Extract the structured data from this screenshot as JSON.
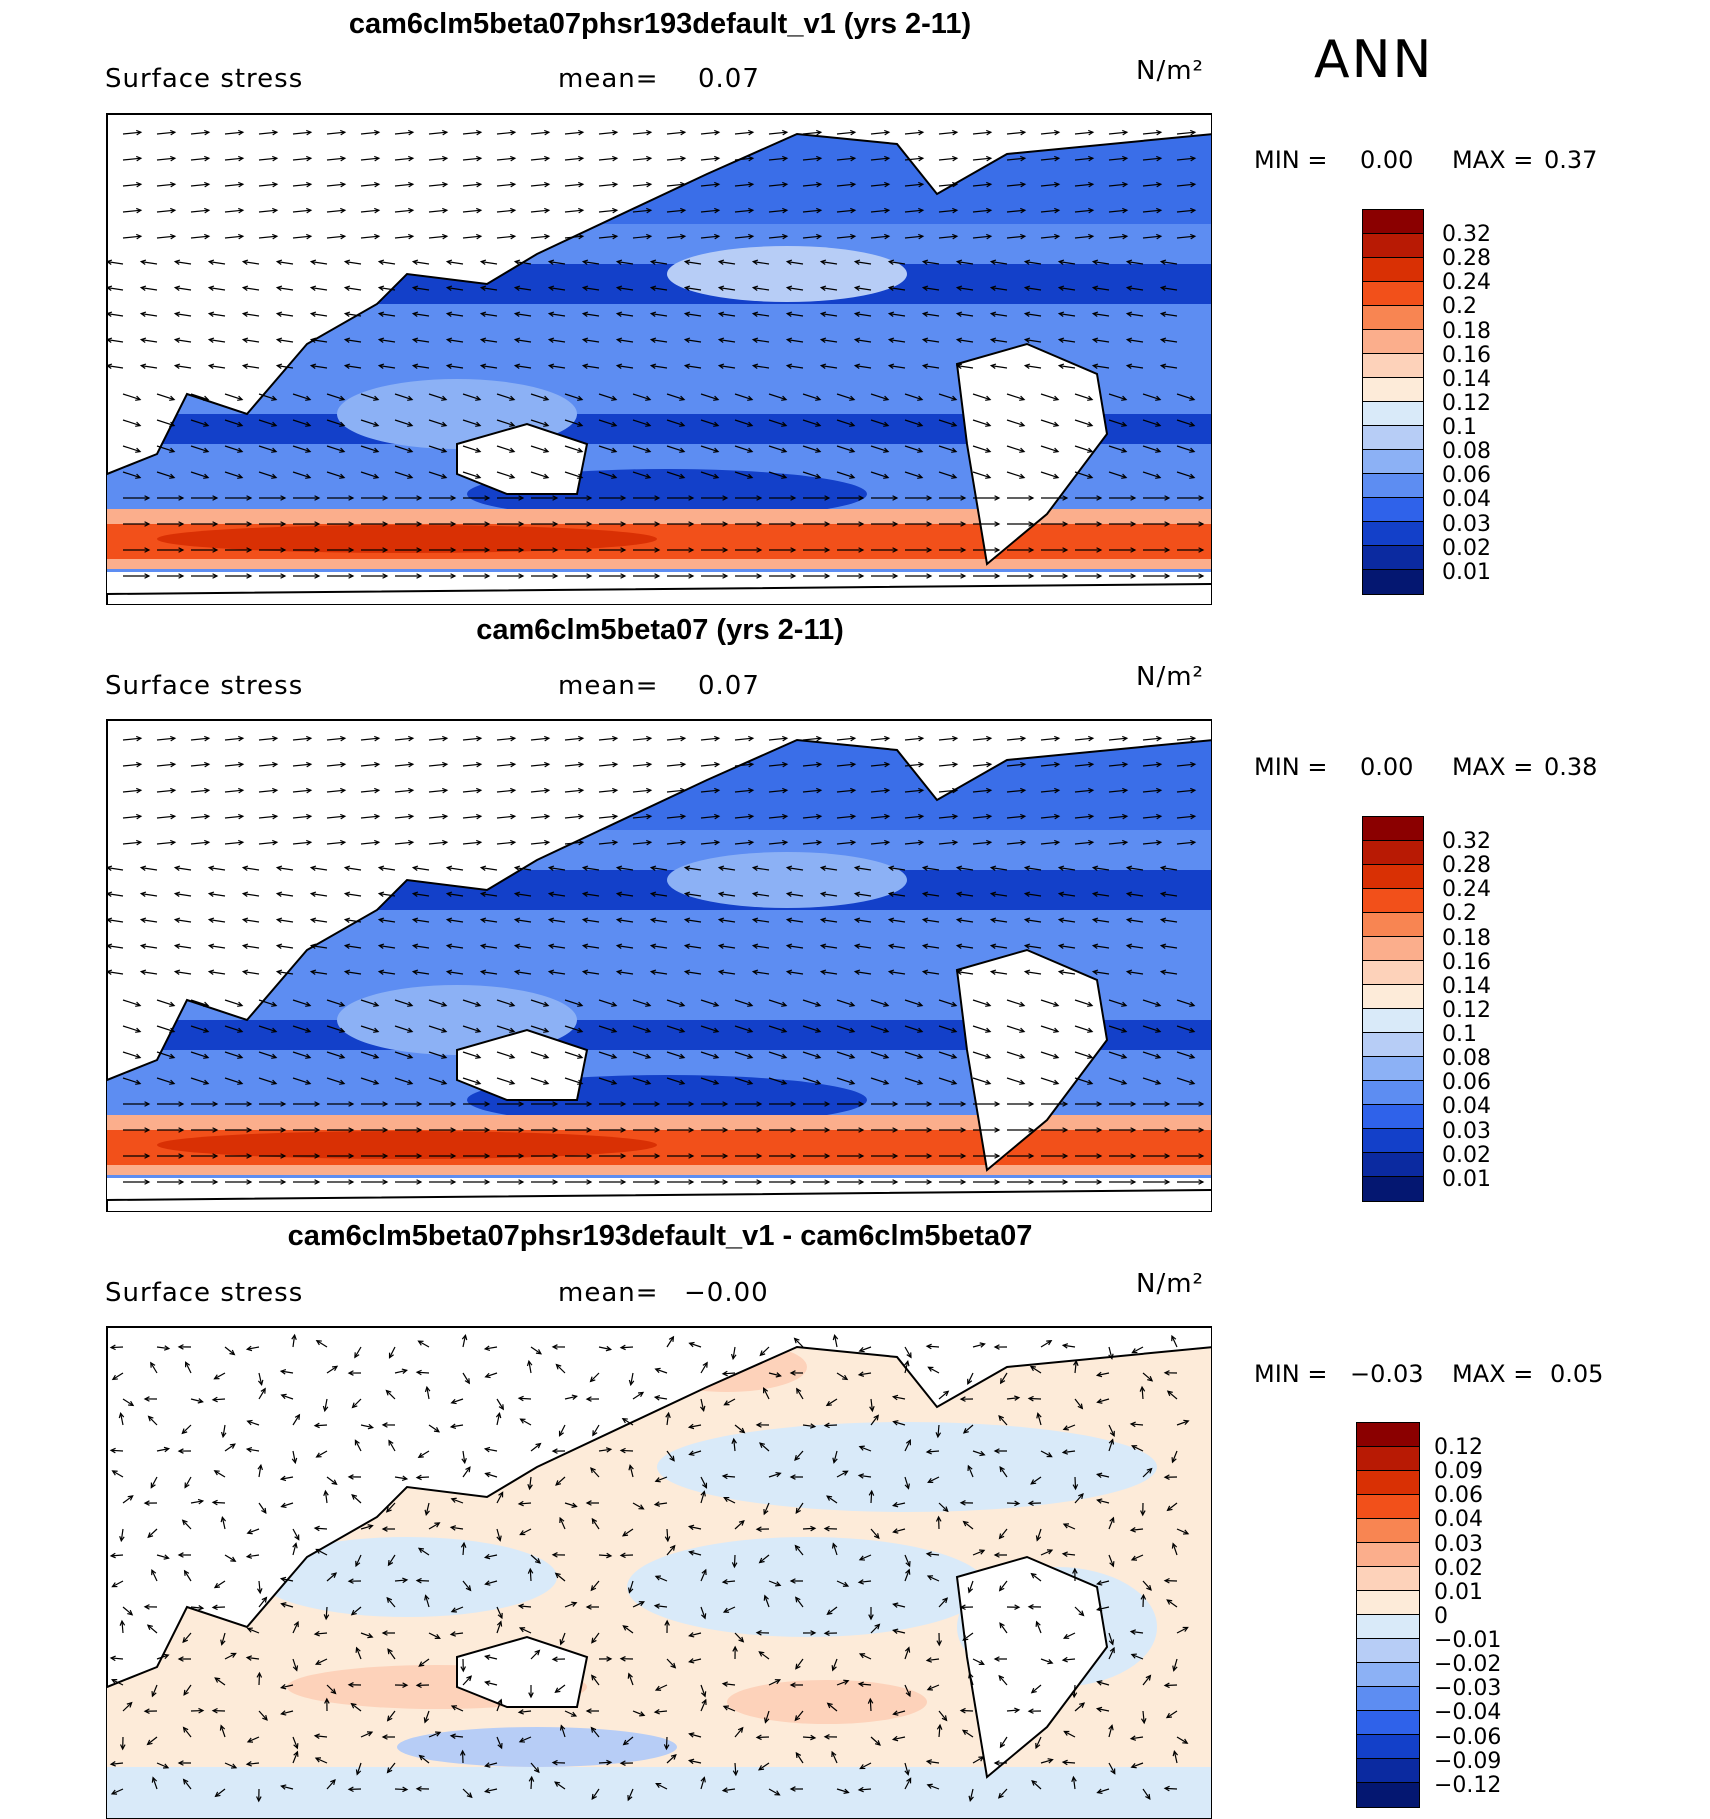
{
  "season": "ANN",
  "panels": [
    {
      "title": "cam6clm5beta07phsr193default_v1 (yrs 2-11)",
      "variable": "Surface stress",
      "mean_label": "mean=",
      "mean_value": "0.07",
      "units": "N/m²",
      "min_label": "MIN =",
      "min_value": "0.00",
      "max_label": "MAX =",
      "max_value": "0.37",
      "colorbar_labels": [
        "0.32",
        "0.28",
        "0.24",
        "0.2",
        "0.18",
        "0.16",
        "0.14",
        "0.12",
        "0.1",
        "0.08",
        "0.06",
        "0.04",
        "0.03",
        "0.02",
        "0.01"
      ],
      "colorbar_colors": [
        "#8b0000",
        "#b81a04",
        "#d93004",
        "#f2501a",
        "#f88552",
        "#fbae8c",
        "#fdd2ba",
        "#fdebd9",
        "#d9eaf9",
        "#b7cdf6",
        "#8cb1f5",
        "#5d8df2",
        "#2f62ea",
        "#1340c9",
        "#0b2aa0",
        "#041771"
      ]
    },
    {
      "title": "cam6clm5beta07 (yrs 2-11)",
      "variable": "Surface stress",
      "mean_label": "mean=",
      "mean_value": "0.07",
      "units": "N/m²",
      "min_label": "MIN =",
      "min_value": "0.00",
      "max_label": "MAX =",
      "max_value": "0.38",
      "colorbar_labels": [
        "0.32",
        "0.28",
        "0.24",
        "0.2",
        "0.18",
        "0.16",
        "0.14",
        "0.12",
        "0.1",
        "0.08",
        "0.06",
        "0.04",
        "0.03",
        "0.02",
        "0.01"
      ],
      "colorbar_colors": [
        "#8b0000",
        "#b81a04",
        "#d93004",
        "#f2501a",
        "#f88552",
        "#fbae8c",
        "#fdd2ba",
        "#fdebd9",
        "#d9eaf9",
        "#b7cdf6",
        "#8cb1f5",
        "#5d8df2",
        "#2f62ea",
        "#1340c9",
        "#0b2aa0",
        "#041771"
      ]
    },
    {
      "title": "cam6clm5beta07phsr193default_v1 - cam6clm5beta07",
      "variable": "Surface stress",
      "mean_label": "mean=",
      "mean_value": "−0.00",
      "units": "N/m²",
      "min_label": "MIN =",
      "min_value": "−0.03",
      "max_label": "MAX =",
      "max_value": "0.05",
      "colorbar_labels": [
        "0.12",
        "0.09",
        "0.06",
        "0.04",
        "0.03",
        "0.02",
        "0.01",
        "0",
        "−0.01",
        "−0.02",
        "−0.03",
        "−0.04",
        "−0.06",
        "−0.09",
        "−0.12"
      ],
      "colorbar_colors": [
        "#8b0000",
        "#b81a04",
        "#d93004",
        "#f2501a",
        "#f88552",
        "#fbae8c",
        "#fdd2ba",
        "#fdebd9",
        "#d9eaf9",
        "#b7cdf6",
        "#8cb1f5",
        "#5d8df2",
        "#2f62ea",
        "#1340c9",
        "#0b2aa0",
        "#041771"
      ]
    }
  ]
}
